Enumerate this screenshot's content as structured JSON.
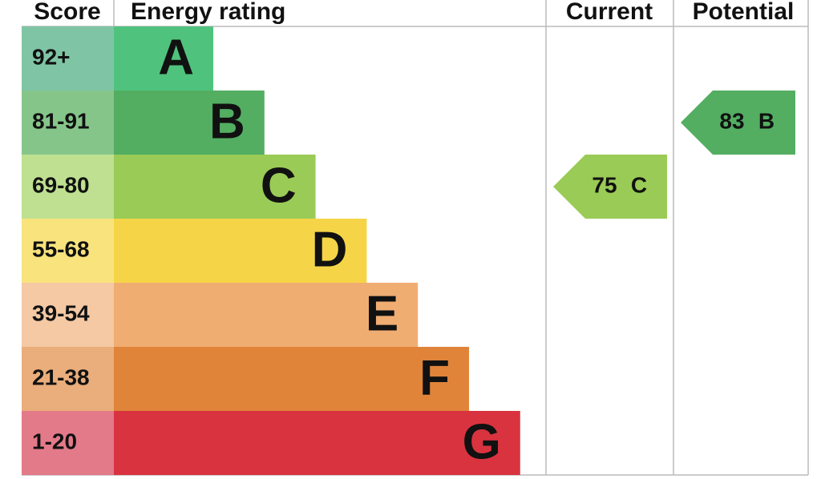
{
  "headers": [
    "Score",
    "Energy rating",
    "Current",
    "Potential"
  ],
  "bands": [
    {
      "score": "92+",
      "letter": "A",
      "color": "#4fc37d",
      "score_color": "#7fc5a5"
    },
    {
      "score": "81-91",
      "letter": "B",
      "color": "#53ae62",
      "score_color": "#86c58a"
    },
    {
      "score": "69-80",
      "letter": "C",
      "color": "#9acb56",
      "score_color": "#bfe090"
    },
    {
      "score": "55-68",
      "letter": "D",
      "color": "#f5d547",
      "score_color": "#f8e37c"
    },
    {
      "score": "39-54",
      "letter": "E",
      "color": "#f0ad72",
      "score_color": "#f4c9a4"
    },
    {
      "score": "21-38",
      "letter": "F",
      "color": "#e0843a",
      "score_color": "#e9ae7b"
    },
    {
      "score": "1-20",
      "letter": "G",
      "color": "#d9333f",
      "score_color": "#e37a89"
    }
  ],
  "current": {
    "score": 75,
    "rating": "C"
  },
  "potential": {
    "score": 83,
    "rating": "B"
  }
}
